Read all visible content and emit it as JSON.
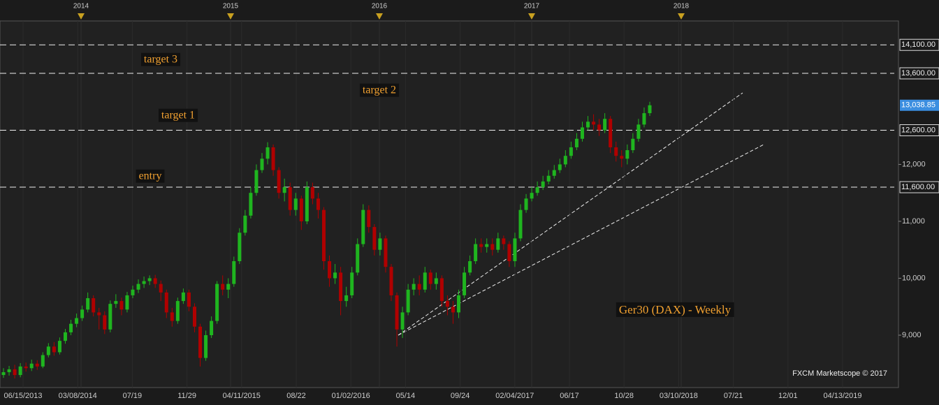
{
  "chart_data": {
    "type": "candlestick",
    "title": "Ger30 (DAX) - Weekly",
    "credit": "FXCM Marketscope © 2017",
    "annotations": [
      "target 3",
      "target 2",
      "target 1",
      "entry"
    ],
    "up_color": "#1fb51f",
    "down_color": "#b00000",
    "open": [
      8300,
      8350,
      8400,
      8300,
      8450,
      8420,
      8500,
      8450,
      8650,
      8800,
      8700,
      8900,
      9050,
      9200,
      9300,
      9450,
      9650,
      9400,
      9350,
      9100,
      9550,
      9600,
      9450,
      9700,
      9800,
      9900,
      9950,
      10000,
      9900,
      9750,
      9400,
      9250,
      9600,
      9750,
      9500,
      9150,
      8600,
      9000,
      9250,
      9900,
      9800,
      9900,
      10300,
      10800,
      11100,
      11500,
      11900,
      12100,
      12300,
      11900,
      11500,
      11600,
      11200,
      11400,
      11000,
      11600,
      11400,
      11200,
      10300,
      10000,
      10100,
      9600,
      9700,
      10100,
      10600,
      11200,
      10900,
      10500,
      10700,
      10200,
      9700,
      9100,
      9400,
      9800,
      9900,
      9800,
      10100,
      9900,
      10000,
      9600,
      9500,
      9400,
      9700,
      10100,
      10300,
      10600,
      10550,
      10600,
      10500,
      10700,
      10600,
      10300,
      10700,
      11200,
      11400,
      11500,
      11600,
      11700,
      11800,
      11900,
      12000,
      12150,
      12300,
      12450,
      12650,
      12750,
      12700,
      12600,
      12800,
      12300,
      12150,
      12100,
      12250,
      12450,
      12700,
      12900
    ],
    "high": [
      8420,
      8460,
      8480,
      8510,
      8520,
      8570,
      8560,
      8700,
      8860,
      8880,
      8960,
      9110,
      9270,
      9380,
      9520,
      9750,
      9700,
      9480,
      9420,
      9610,
      9720,
      9660,
      9760,
      9870,
      9980,
      10030,
      10050,
      10060,
      9960,
      9800,
      9480,
      9660,
      9820,
      9800,
      9560,
      9200,
      9080,
      9330,
      9950,
      10050,
      10000,
      10380,
      10880,
      11200,
      11600,
      12000,
      12200,
      12390,
      12350,
      11950,
      11750,
      11680,
      11500,
      11450,
      11700,
      11680,
      11500,
      11250,
      10400,
      10250,
      10200,
      9850,
      10200,
      10700,
      11300,
      11280,
      10950,
      10800,
      10750,
      10250,
      9750,
      9500,
      9900,
      10000,
      10050,
      10200,
      10150,
      10100,
      10050,
      9700,
      9600,
      9800,
      10200,
      10400,
      10700,
      10700,
      10700,
      10700,
      10800,
      10750,
      10650,
      10800,
      11300,
      11480,
      11600,
      11700,
      11800,
      11900,
      11990,
      12100,
      12250,
      12400,
      12550,
      12750,
      12850,
      12880,
      12800,
      12900,
      12850,
      12400,
      12250,
      12350,
      12550,
      12800,
      13000,
      13100
    ],
    "low": [
      8250,
      8290,
      8240,
      8260,
      8360,
      8370,
      8390,
      8420,
      8610,
      8640,
      8660,
      8850,
      9000,
      9140,
      9250,
      9400,
      9330,
      9100,
      9020,
      9050,
      9480,
      9350,
      9400,
      9650,
      9740,
      9830,
      9880,
      9830,
      9600,
      9300,
      9150,
      9200,
      9550,
      9420,
      9050,
      8450,
      8550,
      8950,
      9200,
      9700,
      9650,
      9850,
      10250,
      10750,
      11050,
      11450,
      11850,
      12000,
      11800,
      11400,
      11350,
      11100,
      11100,
      10850,
      10950,
      11300,
      11050,
      10150,
      9850,
      9900,
      9350,
      9500,
      9650,
      10050,
      10550,
      10800,
      10400,
      10400,
      10100,
      9600,
      8800,
      8950,
      9350,
      9700,
      9700,
      9750,
      9800,
      9800,
      9500,
      9350,
      9200,
      9300,
      9650,
      10050,
      10250,
      10450,
      10450,
      10400,
      10450,
      10500,
      10200,
      10200,
      10650,
      11150,
      11350,
      11450,
      11550,
      11650,
      11750,
      11850,
      11950,
      12100,
      12250,
      12400,
      12600,
      12600,
      12500,
      12550,
      12200,
      12050,
      11950,
      12000,
      12200,
      12400,
      12650,
      12850
    ],
    "close": [
      8350,
      8400,
      8300,
      8450,
      8420,
      8500,
      8450,
      8650,
      8800,
      8700,
      8900,
      9050,
      9200,
      9300,
      9450,
      9650,
      9400,
      9350,
      9100,
      9550,
      9600,
      9450,
      9700,
      9800,
      9900,
      9950,
      10000,
      9900,
      9750,
      9400,
      9250,
      9600,
      9750,
      9500,
      9150,
      8600,
      9000,
      9250,
      9900,
      9800,
      9900,
      10300,
      10800,
      11100,
      11500,
      11900,
      12100,
      12300,
      11900,
      11500,
      11600,
      11200,
      11400,
      11000,
      11600,
      11400,
      11200,
      10300,
      10000,
      10100,
      9600,
      9700,
      10100,
      10600,
      11200,
      10900,
      10500,
      10700,
      10200,
      9700,
      9100,
      9400,
      9800,
      9900,
      9800,
      10100,
      9900,
      10000,
      9600,
      9500,
      9400,
      9700,
      10100,
      10300,
      10600,
      10550,
      10600,
      10500,
      10700,
      10600,
      10300,
      10700,
      11200,
      11400,
      11500,
      11600,
      11700,
      11800,
      11900,
      12000,
      12150,
      12300,
      12450,
      12650,
      12750,
      12700,
      12600,
      12800,
      12300,
      12150,
      12100,
      12250,
      12450,
      12700,
      12900,
      13038.85
    ],
    "ylim": [
      8080,
      14520
    ],
    "yticks": [
      {
        "value": 9000,
        "label": "9,000"
      },
      {
        "value": 10000,
        "label": "10,000"
      },
      {
        "value": 11000,
        "label": "11,000"
      },
      {
        "value": 12000,
        "label": "12,000"
      }
    ],
    "levels": [
      {
        "value": 14100,
        "label": "14,100.00"
      },
      {
        "value": 13600,
        "label": "13,600.00"
      },
      {
        "value": 12600,
        "label": "12,600.00"
      },
      {
        "value": 11600,
        "label": "11,600.00"
      }
    ],
    "last_price": {
      "value": 13038.85,
      "label": "13,038.85"
    },
    "x_labels": [
      "06/15/2013",
      "03/08/2014",
      "07/19",
      "11/29",
      "04/11/2015",
      "08/22",
      "01/02/2016",
      "05/14",
      "09/24",
      "02/04/2017",
      "06/17",
      "10/28",
      "03/10/2018",
      "07/21",
      "12/01",
      "04/13/2019"
    ],
    "year_labels": [
      "2014",
      "2015",
      "2016",
      "2017",
      "2018"
    ]
  }
}
